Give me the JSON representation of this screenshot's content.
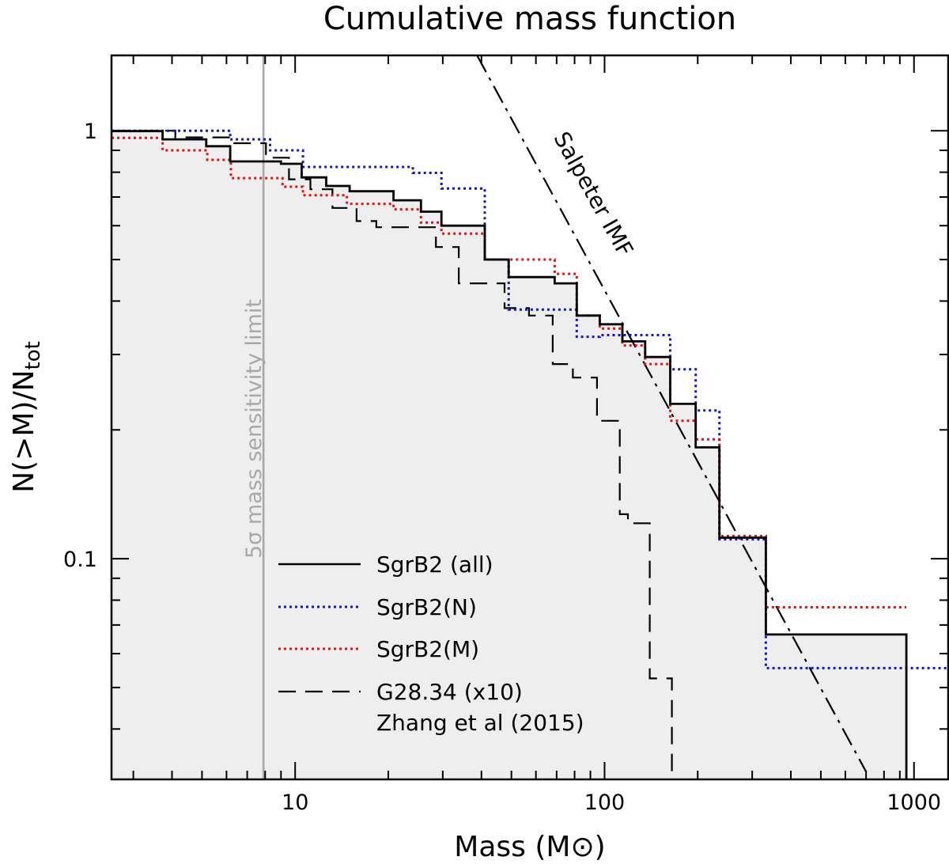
{
  "chart_data": {
    "type": "line",
    "title": "Cumulative mass function",
    "xlabel": "Mass (M⊙)",
    "ylabel_main": "N(>M)/N",
    "ylabel_sub": "tot",
    "xscale": "log",
    "yscale": "log",
    "xlim": [
      2.55,
      1290
    ],
    "ylim": [
      0.0305,
      1.5
    ],
    "x_ticks": [
      {
        "value": 10,
        "label": "10"
      },
      {
        "value": 100,
        "label": "100"
      },
      {
        "value": 1000,
        "label": "1000"
      }
    ],
    "y_ticks": [
      {
        "value": 1,
        "label": "1"
      },
      {
        "value": 0.1,
        "label": "0.1"
      }
    ],
    "grid": false,
    "legend_position": "bottom-left",
    "series": [
      {
        "name": "SgrB2 (all)",
        "color": "#000000",
        "style": "solid",
        "shaded_below": true,
        "x": [
          2.55,
          3.73,
          5.16,
          6.17,
          9.0,
          10.5,
          12.6,
          15.0,
          20.8,
          25.5,
          29.7,
          41.0,
          49.0,
          69.0,
          81.3,
          96.5,
          114.2,
          135.3,
          163.0,
          197.0,
          235.0,
          332.0,
          945.0
        ],
        "y": [
          0.998,
          0.955,
          0.92,
          0.848,
          0.837,
          0.778,
          0.743,
          0.722,
          0.688,
          0.647,
          0.6,
          0.5,
          0.455,
          0.44,
          0.37,
          0.353,
          0.322,
          0.296,
          0.23,
          0.182,
          0.112,
          0.0665,
          0.0305
        ]
      },
      {
        "name": "SgrB2(N)",
        "color": "#1414c8",
        "style": "dotted",
        "x": [
          2.55,
          6.17,
          8.3,
          10.6,
          24.0,
          29.7,
          41.0,
          49.0,
          81.3,
          96.5,
          163.0,
          197.0,
          235.0,
          332.0,
          1290.0
        ],
        "y": [
          1.0,
          0.955,
          0.9,
          0.823,
          0.797,
          0.733,
          0.5,
          0.382,
          0.33,
          0.333,
          0.277,
          0.222,
          0.111,
          0.0555,
          0.0555
        ]
      },
      {
        "name": "SgrB2(M)",
        "color": "#e01414",
        "style": "dotted",
        "x": [
          2.55,
          3.73,
          5.2,
          6.2,
          9.1,
          10.6,
          14.7,
          20.8,
          25.5,
          29.7,
          41.0,
          69.0,
          81.3,
          96.5,
          114.2,
          135.3,
          163.0,
          197.0,
          235.0,
          332.0,
          945.0
        ],
        "y": [
          0.962,
          0.9,
          0.855,
          0.775,
          0.74,
          0.707,
          0.675,
          0.655,
          0.61,
          0.575,
          0.5,
          0.463,
          0.37,
          0.345,
          0.315,
          0.285,
          0.21,
          0.19,
          0.113,
          0.077,
          0.077
        ]
      },
      {
        "name": "G28.34 (x10)",
        "name_line2": "Zhang et al (2015)",
        "color": "#000000",
        "style": "dashed",
        "x": [
          2.55,
          4.1,
          6.25,
          8.05,
          9.55,
          11.2,
          13.2,
          15.8,
          18.3,
          22.6,
          28.5,
          33.8,
          47.5,
          57.0,
          68.0,
          79.0,
          94.5,
          112.0,
          119.0,
          140.0,
          165.0
        ],
        "y": [
          1.0,
          0.965,
          0.935,
          0.865,
          0.77,
          0.73,
          0.66,
          0.615,
          0.595,
          0.595,
          0.535,
          0.44,
          0.385,
          0.37,
          0.285,
          0.265,
          0.21,
          0.127,
          0.121,
          0.0525,
          0.0305
        ]
      },
      {
        "name": "Salpeter IMF",
        "color": "#000000",
        "style": "dashdot",
        "x": [
          38.7,
          700.0
        ],
        "y": [
          1.5,
          0.0318
        ]
      }
    ],
    "annotations": [
      {
        "text": "Salpeter IMF",
        "at": [
          60,
          0.58
        ],
        "rotation_deg": 61
      },
      {
        "text": "5σ mass sensitivity limit",
        "at": [
          7.9,
          0.0944
        ],
        "rotation_deg": -90
      }
    ],
    "sensitivity_limit": {
      "x": 7.9,
      "color": "#a8a8a8",
      "label": "5σ mass sensitivity limit"
    }
  }
}
